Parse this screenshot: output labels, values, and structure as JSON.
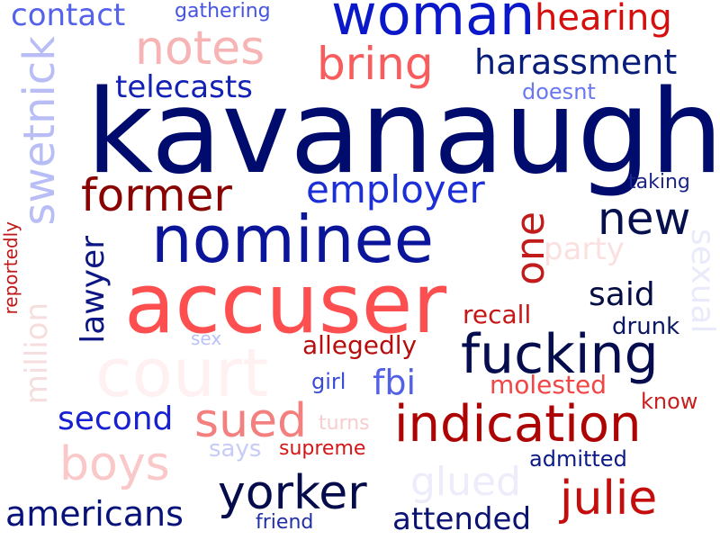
{
  "words": [
    {
      "text": "kavanaugh",
      "color": "#000b6e"
    },
    {
      "text": "accuser",
      "color": "#fd4f4f"
    },
    {
      "text": "nominee",
      "color": "#0a1599"
    },
    {
      "text": "woman",
      "color": "#0a18c9"
    },
    {
      "text": "court",
      "color": "#fff1f1"
    },
    {
      "text": "swetnick",
      "color": "#b8bdf6"
    },
    {
      "text": "notes",
      "color": "#f7b4b4"
    },
    {
      "text": "bring",
      "color": "#f85c5c"
    },
    {
      "text": "hearing",
      "color": "#d50e0e"
    },
    {
      "text": "contact",
      "color": "#5562ea"
    },
    {
      "text": "gathering",
      "color": "#4654e0"
    },
    {
      "text": "harassment",
      "color": "#081d7a"
    },
    {
      "text": "telecasts",
      "color": "#1322b5"
    },
    {
      "text": "doesnt",
      "color": "#6a77f1"
    },
    {
      "text": "former",
      "color": "#8a0303"
    },
    {
      "text": "employer",
      "color": "#1c2ed6"
    },
    {
      "text": "taking",
      "color": "#1a2585"
    },
    {
      "text": "new",
      "color": "#06104f"
    },
    {
      "text": "one",
      "color": "#c11b1b"
    },
    {
      "text": "party",
      "color": "#fbe0e0"
    },
    {
      "text": "sexual",
      "color": "#e9ebfb"
    },
    {
      "text": "lawyer",
      "color": "#0c1784"
    },
    {
      "text": "million",
      "color": "#f6dede"
    },
    {
      "text": "reportedly",
      "color": "#c01919"
    },
    {
      "text": "said",
      "color": "#050d45"
    },
    {
      "text": "recall",
      "color": "#c61616"
    },
    {
      "text": "drunk",
      "color": "#0a1764"
    },
    {
      "text": "fucking",
      "color": "#050d4f"
    },
    {
      "text": "allegedly",
      "color": "#b60d0d"
    },
    {
      "text": "sex",
      "color": "#b7c1f7"
    },
    {
      "text": "girl",
      "color": "#3a4bd6"
    },
    {
      "text": "fbi",
      "color": "#5361e6"
    },
    {
      "text": "molested",
      "color": "#f24545"
    },
    {
      "text": "know",
      "color": "#c81f1f"
    },
    {
      "text": "second",
      "color": "#1721d2"
    },
    {
      "text": "sued",
      "color": "#f47f7f"
    },
    {
      "text": "indication",
      "color": "#ad0303"
    },
    {
      "text": "turns",
      "color": "#f9cdcd"
    },
    {
      "text": "boys",
      "color": "#fac8c8"
    },
    {
      "text": "says",
      "color": "#c7cbf7"
    },
    {
      "text": "supreme",
      "color": "#d51616"
    },
    {
      "text": "glued",
      "color": "#ececfb"
    },
    {
      "text": "admitted",
      "color": "#0b1a87"
    },
    {
      "text": "yorker",
      "color": "#040c4c"
    },
    {
      "text": "julie",
      "color": "#c40d0d"
    },
    {
      "text": "americans",
      "color": "#07137a"
    },
    {
      "text": "friend",
      "color": "#202fa6"
    },
    {
      "text": "attended",
      "color": "#0a1373"
    }
  ]
}
